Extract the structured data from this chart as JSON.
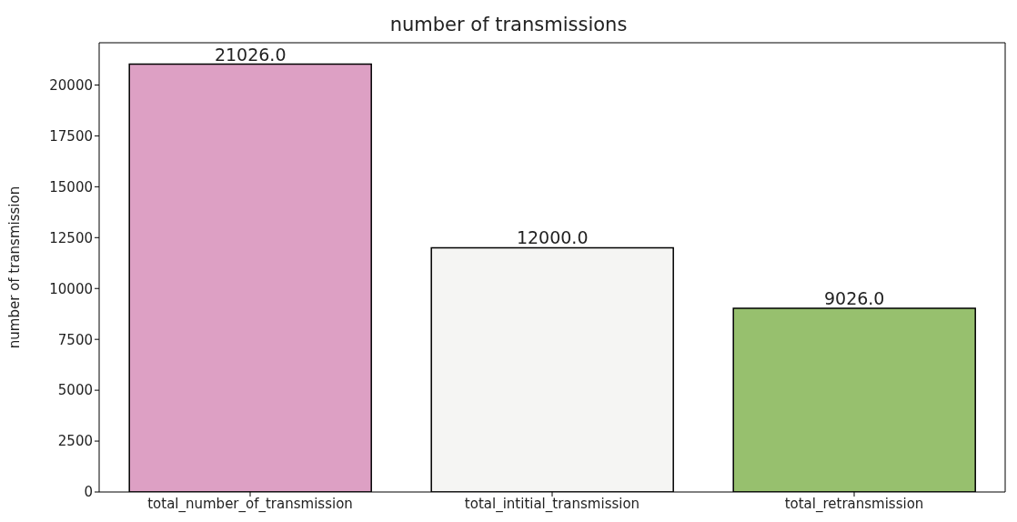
{
  "chart_data": {
    "type": "bar",
    "title": "number of transmissions",
    "ylabel": "number of transmission",
    "categories": [
      "total_number_of_transmission",
      "total_intitial_transmission",
      "total_retransmission"
    ],
    "values": [
      21026,
      12000,
      9026
    ],
    "colors": [
      "#dda0c4",
      "#f5f5f3",
      "#97c06e"
    ],
    "value_labels": [
      "21026.0",
      "12000.0",
      "9026.0"
    ],
    "ylim": [
      0,
      22077.3
    ],
    "yticks": [
      0,
      2500,
      5000,
      7500,
      10000,
      12500,
      15000,
      17500,
      20000
    ],
    "grid": false
  }
}
